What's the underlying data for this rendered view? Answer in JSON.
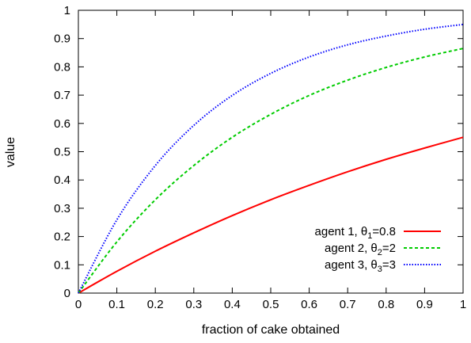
{
  "chart_data": {
    "type": "line",
    "title": "",
    "xlabel": "fraction of cake obtained",
    "ylabel": "value",
    "xlim": [
      0,
      1
    ],
    "ylim": [
      0,
      1
    ],
    "xticks": [
      "0",
      "0.1",
      "0.2",
      "0.3",
      "0.4",
      "0.5",
      "0.6",
      "0.7",
      "0.8",
      "0.9",
      "1"
    ],
    "yticks": [
      "0",
      "0.1",
      "0.2",
      "0.3",
      "0.4",
      "0.5",
      "0.6",
      "0.7",
      "0.8",
      "0.9",
      "1"
    ],
    "grid": false,
    "legend_position": "bottom-right",
    "x": [
      0,
      0.1,
      0.2,
      0.3,
      0.4,
      0.5,
      0.6,
      0.7,
      0.8,
      0.9,
      1
    ],
    "series": [
      {
        "name": "agent 1, θ1=0.8",
        "name_parts": {
          "prefix": "agent 1, θ",
          "sub": "1",
          "suffix": "=0.8"
        },
        "color": "#ff0000",
        "dash": "solid",
        "values": [
          0,
          0.077,
          0.148,
          0.213,
          0.274,
          0.33,
          0.381,
          0.429,
          0.473,
          0.513,
          0.551
        ]
      },
      {
        "name": "agent 2, θ2=2",
        "name_parts": {
          "prefix": "agent 2, θ",
          "sub": "2",
          "suffix": "=2"
        },
        "color": "#00cc00",
        "dash": "dashed",
        "values": [
          0,
          0.181,
          0.33,
          0.451,
          0.551,
          0.632,
          0.699,
          0.753,
          0.798,
          0.835,
          0.865
        ]
      },
      {
        "name": "agent 3, θ3=3",
        "name_parts": {
          "prefix": "agent 3, θ",
          "sub": "3",
          "suffix": "=3"
        },
        "color": "#0000ff",
        "dash": "dotted",
        "values": [
          0,
          0.259,
          0.451,
          0.593,
          0.699,
          0.777,
          0.835,
          0.878,
          0.909,
          0.933,
          0.95
        ]
      }
    ]
  }
}
